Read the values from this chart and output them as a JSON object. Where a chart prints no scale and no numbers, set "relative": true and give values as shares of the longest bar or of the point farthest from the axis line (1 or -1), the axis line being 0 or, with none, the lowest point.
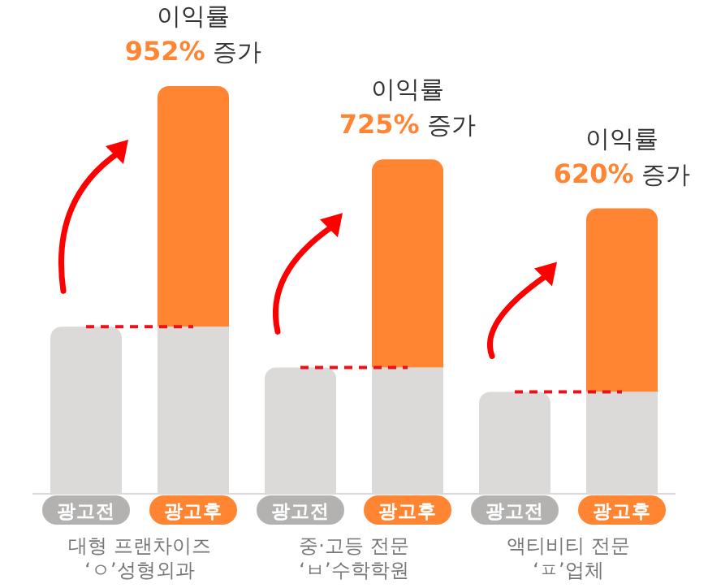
{
  "chart_data": {
    "type": "bar",
    "relative": true,
    "stacked": true,
    "categories": [
      "광고전",
      "광고후",
      "광고전",
      "광고후",
      "광고전",
      "광고후"
    ],
    "series": [
      {
        "color": "#dbdad9",
        "values": [
          0.41,
          0.41,
          0.31,
          0.31,
          0.25,
          0.25
        ]
      },
      {
        "color": "#ff8533",
        "values": [
          null,
          0.59,
          null,
          0.51,
          null,
          0.45
        ]
      }
    ],
    "ref_lines": [
      {
        "axis": "y",
        "value": 0.41,
        "color": "#e8121a",
        "line_style": "dashed"
      },
      {
        "axis": "y",
        "value": 0.31,
        "color": "#e8121a",
        "line_style": "dashed"
      },
      {
        "axis": "y",
        "value": 0.25,
        "color": "#e8121a",
        "line_style": "dashed"
      }
    ],
    "annotations": [
      "이익률 952% 증가",
      "이익률 725% 증가",
      "이익률 620% 증가",
      "대형 프랜차이즈\n‘ㅇ’성형외과",
      "중·고등 전문\n‘ㅂ’수학학원",
      "액티비티 전문\n‘ㅍ’업체"
    ]
  }
}
